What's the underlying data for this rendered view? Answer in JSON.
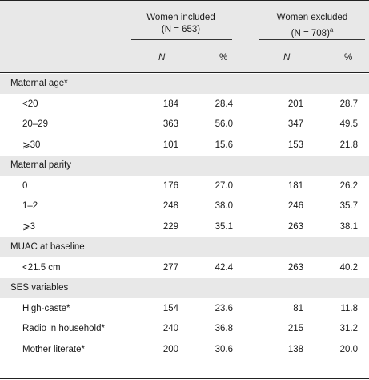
{
  "header": {
    "included": {
      "line1": "Women included",
      "line2": "(N = 653)"
    },
    "excluded": {
      "line1": "Women excluded",
      "line2": "(N = 708)",
      "sup": "a"
    },
    "col_n": "N",
    "col_pct": "%"
  },
  "sections": [
    {
      "label": "Maternal age*",
      "rows": [
        {
          "label": "<20",
          "inc_n": "184",
          "inc_pct": "28.4",
          "exc_n": "201",
          "exc_pct": "28.7"
        },
        {
          "label": "20–29",
          "inc_n": "363",
          "inc_pct": "56.0",
          "exc_n": "347",
          "exc_pct": "49.5"
        },
        {
          "label": "⩾30",
          "inc_n": "101",
          "inc_pct": "15.6",
          "exc_n": "153",
          "exc_pct": "21.8"
        }
      ]
    },
    {
      "label": "Maternal parity",
      "rows": [
        {
          "label": "0",
          "inc_n": "176",
          "inc_pct": "27.0",
          "exc_n": "181",
          "exc_pct": "26.2"
        },
        {
          "label": "1–2",
          "inc_n": "248",
          "inc_pct": "38.0",
          "exc_n": "246",
          "exc_pct": "35.7"
        },
        {
          "label": "⩾3",
          "inc_n": "229",
          "inc_pct": "35.1",
          "exc_n": "263",
          "exc_pct": "38.1"
        }
      ]
    },
    {
      "label": "MUAC at baseline",
      "rows": [
        {
          "label": "<21.5 cm",
          "inc_n": "277",
          "inc_pct": "42.4",
          "exc_n": "263",
          "exc_pct": "40.2"
        }
      ]
    },
    {
      "label": "SES variables",
      "rows": [
        {
          "label": "High-caste*",
          "inc_n": "154",
          "inc_pct": "23.6",
          "exc_n": "81",
          "exc_pct": "11.8"
        },
        {
          "label": "Radio in household*",
          "inc_n": "240",
          "inc_pct": "36.8",
          "exc_n": "215",
          "exc_pct": "31.2"
        },
        {
          "label": "Mother literate*",
          "inc_n": "200",
          "inc_pct": "30.6",
          "exc_n": "138",
          "exc_pct": "20.0"
        }
      ]
    }
  ]
}
